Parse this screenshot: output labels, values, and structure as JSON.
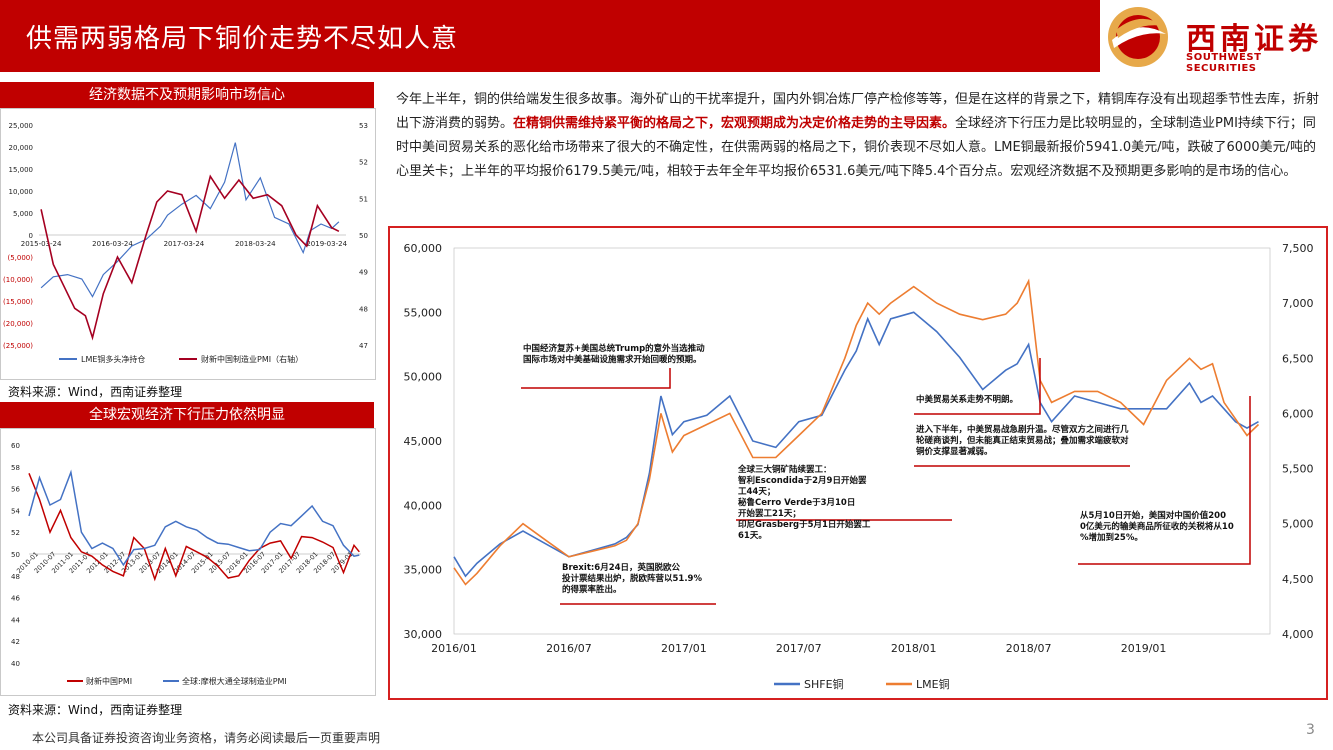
{
  "header": {
    "title": "供需两弱格局下铜价走势不尽如人意",
    "logo_cn": "西南证券",
    "logo_en": "SOUTHWEST SECURITIES"
  },
  "paragraph": {
    "part1": "今年上半年，铜的供给端发生很多故事。海外矿山的干扰率提升，国内外铜冶炼厂停产检修等等，但是在这样的背景之下，精铜库存没有出现超季节性去库，折射出下游消费的弱势。",
    "highlight": "在精铜供需维持紧平衡的格局之下，宏观预期成为决定价格走势的主导因素。",
    "part2": "全球经济下行压力是比较明显的，全球制造业PMI持续下行；同时中美间贸易关系的恶化给市场带来了很大的不确定性，在供需两弱的格局之下，铜价表现不尽如人意。LME铜最新报价5941.0美元/吨，跌破了6000美元/吨的心里关卡；上半年的平均报价6179.5美元/吨，相较于去年全年平均报价6531.6美元/吨下降5.4个百分点。宏观经济数据不及预期更多影响的是市场的信心。"
  },
  "footer": {
    "disclaimer": "本公司具备证券投资咨询业务资格，请务必阅读最后一页重要声明",
    "page": "3"
  },
  "colors": {
    "red": "#c00000",
    "blue": "#4472c4",
    "orange": "#ed7d31",
    "darkred": "#a50021"
  },
  "chart_data": [
    {
      "type": "line",
      "panel_title": "经济数据不及预期影响市场信心",
      "source": "资料来源：Wind，西南证券整理",
      "x_ticks": [
        "2015-03-24",
        "2016-03-24",
        "2017-03-24",
        "2018-03-24",
        "2019-03-24"
      ],
      "ylim": [
        -25000,
        25000
      ],
      "y2lim": [
        47,
        53
      ],
      "y_tick_labels": [
        "25,000",
        "20,000",
        "15,000",
        "10,000",
        "5,000",
        "0",
        "(5,000)",
        "(10,000)",
        "(15,000)",
        "(20,000)",
        "(25,000)"
      ],
      "y2_tick_labels": [
        "53",
        "52",
        "51",
        "50",
        "49",
        "48",
        "47"
      ],
      "series": [
        {
          "name": "LME铜多头净持仓",
          "axis": "left",
          "color": "#4472c4",
          "x": [
            2015.23,
            2015.4,
            2015.6,
            2015.8,
            2015.95,
            2016.1,
            2016.3,
            2016.5,
            2016.7,
            2016.9,
            2017.0,
            2017.2,
            2017.4,
            2017.6,
            2017.8,
            2017.95,
            2018.1,
            2018.3,
            2018.5,
            2018.7,
            2018.9,
            2019.0,
            2019.15,
            2019.3,
            2019.4
          ],
          "values": [
            -12000,
            -9500,
            -9000,
            -10000,
            -14000,
            -9000,
            -6000,
            -2500,
            -1000,
            2000,
            4500,
            7000,
            9000,
            6000,
            12000,
            21000,
            8000,
            13000,
            4000,
            2500,
            -4000,
            1000,
            2500,
            1500,
            3000
          ]
        },
        {
          "name": "财新中国制造业PMI（右轴）",
          "axis": "right",
          "color": "#a50021",
          "x": [
            2015.23,
            2015.4,
            2015.55,
            2015.7,
            2015.85,
            2015.95,
            2016.1,
            2016.3,
            2016.5,
            2016.7,
            2016.85,
            2017.0,
            2017.2,
            2017.4,
            2017.6,
            2017.8,
            2018.0,
            2018.2,
            2018.4,
            2018.6,
            2018.8,
            2018.95,
            2019.1,
            2019.3,
            2019.4
          ],
          "values": [
            50.7,
            49.2,
            48.6,
            48.0,
            47.8,
            47.2,
            48.4,
            49.4,
            48.7,
            50.0,
            50.9,
            51.2,
            51.1,
            50.1,
            51.6,
            51.0,
            51.5,
            51.0,
            51.1,
            50.8,
            50.0,
            49.7,
            50.8,
            50.2,
            50.1
          ]
        }
      ]
    },
    {
      "type": "line",
      "panel_title": "全球宏观经济下行压力依然明显",
      "source": "资料来源：Wind，西南证券整理",
      "x_ticks": [
        "2010-01",
        "2010-07",
        "2011-01",
        "2011-07",
        "2012-01",
        "2012-07",
        "2013-01",
        "2013-07",
        "2014-01",
        "2014-07",
        "2015-01",
        "2015-07",
        "2016-01",
        "2016-07",
        "2017-01",
        "2017-07",
        "2018-01",
        "2018-07",
        "2019-01"
      ],
      "ylim": [
        40,
        60
      ],
      "y_tick_labels": [
        "60",
        "58",
        "56",
        "54",
        "52",
        "50",
        "48",
        "46",
        "44",
        "42",
        "40"
      ],
      "series": [
        {
          "name": "财新中国PMI",
          "color": "#c00000",
          "x": [
            2010.0,
            2010.3,
            2010.6,
            2010.9,
            2011.2,
            2011.5,
            2011.8,
            2012.1,
            2012.4,
            2012.7,
            2013.0,
            2013.3,
            2013.6,
            2013.9,
            2014.2,
            2014.5,
            2014.8,
            2015.1,
            2015.4,
            2015.7,
            2016.0,
            2016.3,
            2016.6,
            2016.9,
            2017.2,
            2017.5,
            2017.8,
            2018.1,
            2018.4,
            2018.7,
            2019.0,
            2019.3,
            2019.45
          ],
          "values": [
            57.4,
            55.0,
            52.0,
            54.0,
            51.5,
            50.2,
            49.8,
            49.0,
            48.4,
            48.0,
            51.5,
            50.5,
            47.7,
            50.5,
            48.0,
            50.7,
            50.2,
            49.7,
            48.9,
            47.8,
            48.0,
            49.4,
            50.5,
            51.0,
            51.2,
            49.6,
            51.6,
            51.5,
            51.1,
            50.6,
            48.3,
            50.8,
            50.2
          ]
        },
        {
          "name": "全球:摩根大通全球制造业PMI",
          "color": "#4472c4",
          "x": [
            2010.0,
            2010.3,
            2010.6,
            2010.9,
            2011.2,
            2011.5,
            2011.8,
            2012.1,
            2012.4,
            2012.7,
            2013.0,
            2013.3,
            2013.6,
            2013.9,
            2014.2,
            2014.5,
            2014.8,
            2015.1,
            2015.4,
            2015.7,
            2016.0,
            2016.3,
            2016.6,
            2016.9,
            2017.2,
            2017.5,
            2017.8,
            2018.1,
            2018.4,
            2018.7,
            2019.0,
            2019.3,
            2019.45
          ],
          "values": [
            53.5,
            57.0,
            54.5,
            55.0,
            57.5,
            52.0,
            50.5,
            51.0,
            50.5,
            49.0,
            50.4,
            50.5,
            50.8,
            52.5,
            53.0,
            52.5,
            52.2,
            51.5,
            51.0,
            50.9,
            50.6,
            50.3,
            50.4,
            52.0,
            52.8,
            52.6,
            53.5,
            54.4,
            53.0,
            52.6,
            50.8,
            49.8,
            49.9
          ]
        }
      ]
    },
    {
      "type": "line",
      "x_ticks": [
        "2016/01",
        "2016/07",
        "2017/01",
        "2017/07",
        "2018/01",
        "2018/07",
        "2019/01"
      ],
      "ylim": [
        30000,
        60000
      ],
      "y2lim": [
        4000,
        7500
      ],
      "y_tick_labels": [
        "60,000",
        "55,000",
        "50,000",
        "45,000",
        "40,000",
        "35,000",
        "30,000"
      ],
      "y2_tick_labels": [
        "7,500",
        "7,000",
        "6,500",
        "6,000",
        "5,500",
        "5,000",
        "4,500",
        "4,000"
      ],
      "series": [
        {
          "name": "SHFE铜",
          "axis": "left",
          "color": "#4472c4",
          "x": [
            2016.0,
            2016.05,
            2016.1,
            2016.2,
            2016.3,
            2016.4,
            2016.5,
            2016.6,
            2016.7,
            2016.75,
            2016.8,
            2016.85,
            2016.9,
            2016.95,
            2017.0,
            2017.1,
            2017.2,
            2017.3,
            2017.4,
            2017.5,
            2017.6,
            2017.7,
            2017.75,
            2017.8,
            2017.85,
            2017.9,
            2018.0,
            2018.1,
            2018.2,
            2018.3,
            2018.4,
            2018.45,
            2018.5,
            2018.55,
            2018.6,
            2018.7,
            2018.8,
            2018.9,
            2019.0,
            2019.1,
            2019.2,
            2019.25,
            2019.3,
            2019.35,
            2019.4,
            2019.45,
            2019.5
          ],
          "values": [
            36000,
            34500,
            35500,
            37000,
            38000,
            37000,
            36000,
            36500,
            37000,
            37500,
            38500,
            42500,
            48500,
            45500,
            46500,
            47000,
            48500,
            45000,
            44500,
            46500,
            47000,
            50500,
            52000,
            54500,
            52500,
            54500,
            55000,
            53500,
            51500,
            49000,
            50500,
            51000,
            52500,
            48000,
            46500,
            48500,
            48000,
            47500,
            47500,
            47500,
            49500,
            48000,
            48500,
            47500,
            46500,
            46000,
            46500
          ]
        },
        {
          "name": "LME铜",
          "axis": "right",
          "color": "#ed7d31",
          "x": [
            2016.0,
            2016.05,
            2016.1,
            2016.2,
            2016.3,
            2016.4,
            2016.5,
            2016.6,
            2016.7,
            2016.75,
            2016.8,
            2016.85,
            2016.9,
            2016.95,
            2017.0,
            2017.1,
            2017.2,
            2017.3,
            2017.4,
            2017.5,
            2017.6,
            2017.7,
            2017.75,
            2017.8,
            2017.85,
            2017.9,
            2018.0,
            2018.1,
            2018.2,
            2018.3,
            2018.4,
            2018.45,
            2018.5,
            2018.55,
            2018.6,
            2018.7,
            2018.8,
            2018.9,
            2019.0,
            2019.1,
            2019.2,
            2019.25,
            2019.3,
            2019.35,
            2019.4,
            2019.45,
            2019.5
          ],
          "values": [
            4600,
            4450,
            4550,
            4800,
            5000,
            4850,
            4700,
            4750,
            4800,
            4850,
            5000,
            5400,
            6000,
            5650,
            5800,
            5900,
            6000,
            5600,
            5600,
            5800,
            6000,
            6500,
            6800,
            7000,
            6900,
            7000,
            7150,
            7000,
            6900,
            6850,
            6900,
            7000,
            7200,
            6300,
            6100,
            6200,
            6200,
            6100,
            5900,
            6300,
            6500,
            6400,
            6450,
            6100,
            5950,
            5800,
            5900
          ]
        }
      ],
      "annotations": [
        {
          "label": "中国经济复苏+美国总统Trump的意外当选推动国际市场对中美基础设施需求开始回暖的预期。"
        },
        {
          "label": "Brexit:6月24日，英国脱欧公投计票结果出炉，脱欧阵营以51.9%的得票率胜出。"
        },
        {
          "label": "全球三大铜矿陆续罢工：\n智利Escondida于2月9日开始罢工44天；\n秘鲁Cerro Verde于3月10日开始罢工21天；\n印尼Grasberg于5月1日开始罢工61天。"
        },
        {
          "label": "中美贸易关系走势不明朗。"
        },
        {
          "label": "进入下半年，中美贸易战急剧升温。尽管双方之间进行几轮磋商谈判，但未能真正结束贸易战；叠加需求端疲软对铜价支撑显著减弱。"
        },
        {
          "label": "从5月10日开始，美国对中国价值2000亿美元的输美商品所征收的关税将从10%增加到25%。"
        }
      ]
    }
  ]
}
